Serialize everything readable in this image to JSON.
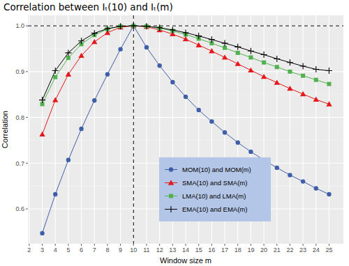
{
  "chart_data": {
    "type": "line",
    "title": "Correlation between Iₜ(10) and Iₜ(m)",
    "x_label": "Window size m",
    "y_label": "Correlation",
    "x": [
      3,
      4,
      5,
      6,
      7,
      8,
      9,
      10,
      11,
      12,
      13,
      14,
      15,
      16,
      17,
      18,
      19,
      20,
      21,
      22,
      23,
      24,
      25
    ],
    "xlim": [
      1.9,
      26.1
    ],
    "xticks": [
      2,
      3,
      4,
      5,
      6,
      7,
      8,
      9,
      10,
      11,
      12,
      13,
      14,
      15,
      16,
      17,
      18,
      19,
      20,
      21,
      22,
      23,
      24,
      25
    ],
    "ylim": [
      0.524,
      1.023
    ],
    "yticks": [
      0.6,
      0.7,
      0.8,
      0.9,
      {
        "value": 1,
        "label": "1.0"
      }
    ],
    "grid": true,
    "legend": "bottom-right",
    "vlines": [
      10
    ],
    "hlines": [
      1
    ],
    "series": [
      {
        "name": "MOM(10) and MOM(m)",
        "color": "#3f5ea8",
        "marker": "circle",
        "line_style": "solid",
        "values": [
          0.547,
          0.632,
          0.707,
          0.775,
          0.837,
          0.894,
          0.949,
          1,
          0.953,
          0.913,
          0.877,
          0.845,
          0.816,
          0.791,
          0.767,
          0.745,
          0.725,
          0.707,
          0.69,
          0.674,
          0.66,
          0.645,
          0.632
        ]
      },
      {
        "name": "SMA(10) and SMA(m)",
        "color": "#e3191c",
        "marker": "triangle",
        "line_style": "solid",
        "values": [
          0.763,
          0.838,
          0.894,
          0.935,
          0.965,
          0.985,
          0.997,
          1,
          0.998,
          0.991,
          0.982,
          0.971,
          0.958,
          0.945,
          0.931,
          0.917,
          0.903,
          0.889,
          0.876,
          0.863,
          0.851,
          0.839,
          0.829
        ]
      },
      {
        "name": "LMA(10) and LMA(m)",
        "color": "#4fb24f",
        "marker": "square",
        "line_style": "solid",
        "values": [
          0.829,
          0.888,
          0.93,
          0.96,
          0.98,
          0.993,
          0.999,
          1,
          0.999,
          0.995,
          0.989,
          0.981,
          0.972,
          0.962,
          0.952,
          0.941,
          0.931,
          0.92,
          0.91,
          0.9,
          0.891,
          0.882,
          0.873
        ]
      },
      {
        "name": "EMA(10) and EMA(m)",
        "color": "#000000",
        "marker": "plus",
        "line_style": "solid",
        "values": [
          0.838,
          0.902,
          0.941,
          0.967,
          0.984,
          0.994,
          0.999,
          1,
          0.999,
          0.996,
          0.991,
          0.985,
          0.978,
          0.97,
          0.962,
          0.954,
          0.945,
          0.937,
          0.928,
          0.92,
          0.912,
          0.905,
          0.902
        ]
      }
    ]
  }
}
